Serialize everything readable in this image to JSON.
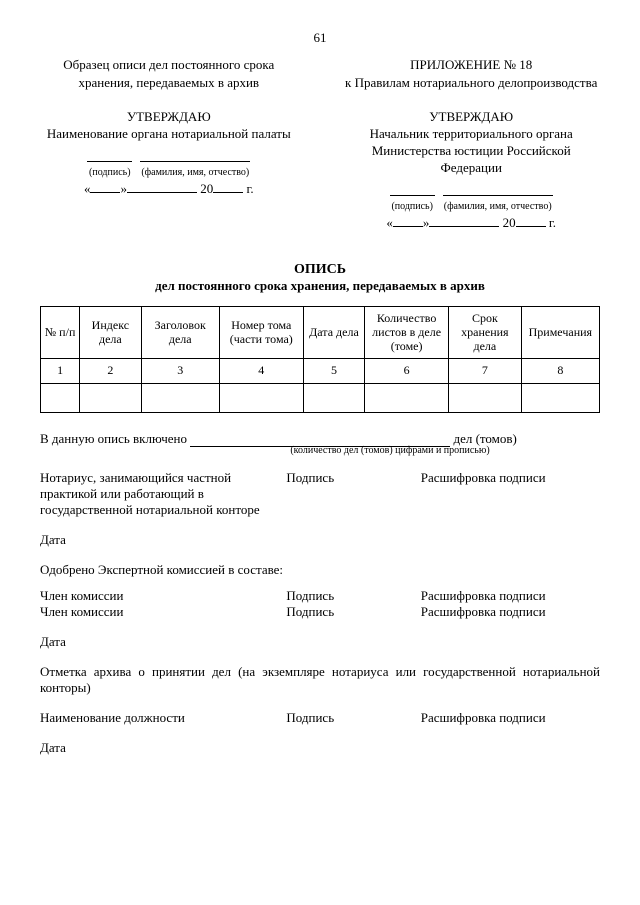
{
  "page_number": "61",
  "top_left": "Образец описи дел постоянного срока хранения, передаваемых в архив",
  "top_right_line1": "ПРИЛОЖЕНИЕ № 18",
  "top_right_line2": "к Правилам нотариального делопроизводства",
  "approve_left_title": "УТВЕРЖДАЮ",
  "approve_left_body": "Наименование органа нотариальной палаты",
  "approve_right_title": "УТВЕРЖДАЮ",
  "approve_right_body": "Начальник территориального органа Министерства юстиции Российской Федерации",
  "sig_label_left": "(подпись)",
  "sig_label_right": "(фамилия, имя, отчество)",
  "date_open": "«",
  "date_close": "»",
  "date_year_prefix": "20",
  "date_year_suffix": "г.",
  "title_main": "ОПИСЬ",
  "title_sub": "дел постоянного срока хранения, передаваемых в архив",
  "table": {
    "headers": [
      "№ п/п",
      "Индекс дела",
      "Заголовок дела",
      "Номер тома (части тома)",
      "Дата дела",
      "Количество листов в деле (томе)",
      "Срок хранения дела",
      "Примечания"
    ],
    "numbers": [
      "1",
      "2",
      "3",
      "4",
      "5",
      "6",
      "7",
      "8"
    ],
    "col_widths": [
      "7%",
      "11%",
      "14%",
      "15%",
      "11%",
      "15%",
      "13%",
      "14%"
    ]
  },
  "included_prefix": "В данную опись включено",
  "included_suffix": "дел (томов)",
  "included_note": "(количество дел (томов) цифрами и прописью)",
  "notary_block": "Нотариус, занимающийся частной практикой или работающий в государственной нотариальной конторе",
  "signature_label": "Подпись",
  "decode_label": "Расшифровка подписи",
  "date_label": "Дата",
  "approved_by": "Одобрено Экспертной комиссией в составе:",
  "member": "Член комиссии",
  "archive_note": "Отметка архива о принятии дел (на экземпляре нотариуса или государственной нотариальной конторы)",
  "position_label": "Наименование должности"
}
